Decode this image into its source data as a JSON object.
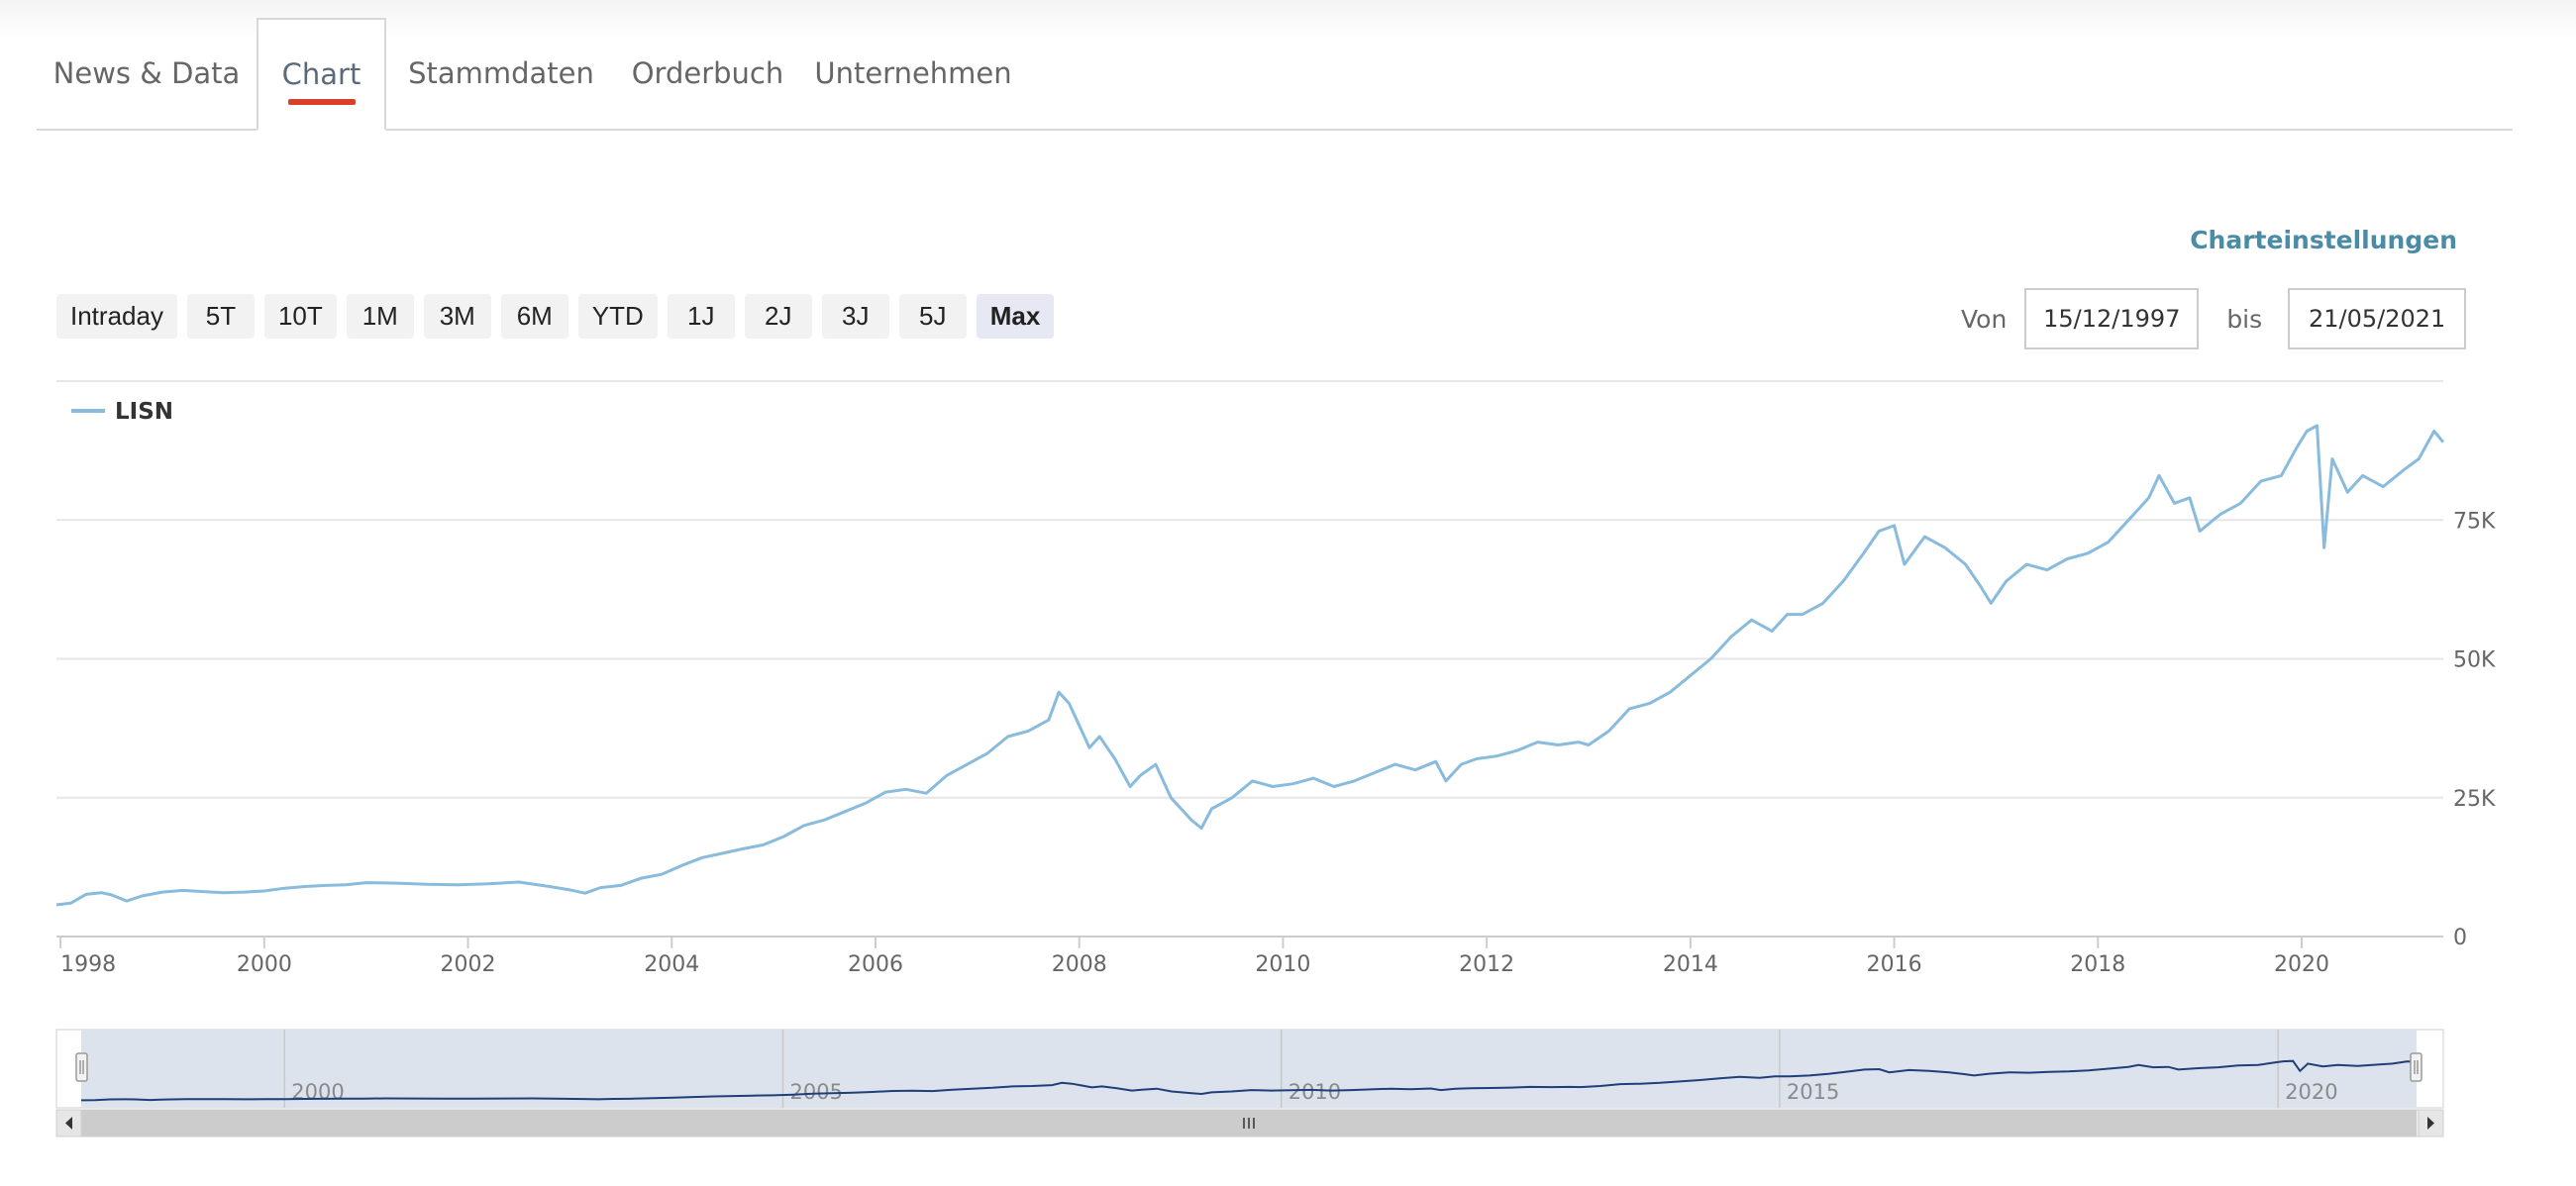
{
  "tabs": [
    {
      "label": "News & Data",
      "active": false
    },
    {
      "label": "Chart",
      "active": true
    },
    {
      "label": "Stammdaten",
      "active": false
    },
    {
      "label": "Orderbuch",
      "active": false
    },
    {
      "label": "Unternehmen",
      "active": false
    }
  ],
  "settings_label": "Charteinstellungen",
  "ranges": [
    "Intraday",
    "5T",
    "10T",
    "1M",
    "3M",
    "6M",
    "YTD",
    "1J",
    "2J",
    "3J",
    "5J",
    "Max"
  ],
  "selected_range": "Max",
  "date_range": {
    "from_label": "Von",
    "from_value": "15/12/1997",
    "to_label": "bis",
    "to_value": "21/05/2021"
  },
  "colors": {
    "series": "#89bbdc",
    "navigator_series": "#1f3f7a",
    "navigator_mask": "#dde3ec",
    "accent": "#d9402b",
    "link": "#4a8ba5"
  },
  "chart_data": {
    "type": "line",
    "title": "",
    "xlabel": "",
    "ylabel": "",
    "legend": {
      "position": "top-left",
      "entries": [
        "LISN"
      ]
    },
    "grid": true,
    "xlim": [
      1997.96,
      2021.39
    ],
    "ylim": [
      0,
      100000
    ],
    "x_ticks": [
      1998,
      2000,
      2002,
      2004,
      2006,
      2008,
      2010,
      2012,
      2014,
      2016,
      2018,
      2020
    ],
    "x_tick_labels": [
      "1998",
      "2000",
      "2002",
      "2004",
      "2006",
      "2008",
      "2010",
      "2012",
      "2014",
      "2016",
      "2018",
      "2020"
    ],
    "y_ticks": [
      0,
      25000,
      50000,
      75000
    ],
    "y_tick_labels": [
      "0",
      "25K",
      "50K",
      "75K"
    ],
    "series": [
      {
        "name": "LISN",
        "x": [
          1997.96,
          1998.1,
          1998.25,
          1998.4,
          1998.5,
          1998.65,
          1998.8,
          1999.0,
          1999.2,
          1999.4,
          1999.6,
          1999.8,
          2000.0,
          2000.2,
          2000.4,
          2000.6,
          2000.8,
          2001.0,
          2001.3,
          2001.6,
          2001.9,
          2002.2,
          2002.5,
          2002.8,
          2003.0,
          2003.15,
          2003.3,
          2003.5,
          2003.7,
          2003.9,
          2004.1,
          2004.3,
          2004.5,
          2004.7,
          2004.9,
          2005.1,
          2005.3,
          2005.5,
          2005.7,
          2005.9,
          2006.1,
          2006.3,
          2006.5,
          2006.7,
          2006.9,
          2007.1,
          2007.3,
          2007.5,
          2007.7,
          2007.8,
          2007.9,
          2008.0,
          2008.1,
          2008.2,
          2008.35,
          2008.5,
          2008.6,
          2008.75,
          2008.9,
          2009.0,
          2009.1,
          2009.2,
          2009.3,
          2009.5,
          2009.7,
          2009.9,
          2010.1,
          2010.3,
          2010.5,
          2010.7,
          2010.9,
          2011.1,
          2011.3,
          2011.5,
          2011.6,
          2011.75,
          2011.9,
          2012.1,
          2012.3,
          2012.5,
          2012.7,
          2012.9,
          2013.0,
          2013.2,
          2013.4,
          2013.6,
          2013.8,
          2014.0,
          2014.2,
          2014.4,
          2014.6,
          2014.8,
          2014.95,
          2015.1,
          2015.3,
          2015.5,
          2015.7,
          2015.85,
          2016.0,
          2016.1,
          2016.3,
          2016.5,
          2016.7,
          2016.85,
          2016.95,
          2017.1,
          2017.3,
          2017.5,
          2017.7,
          2017.9,
          2018.1,
          2018.3,
          2018.5,
          2018.6,
          2018.75,
          2018.9,
          2019.0,
          2019.2,
          2019.4,
          2019.6,
          2019.8,
          2019.95,
          2020.05,
          2020.15,
          2020.22,
          2020.3,
          2020.45,
          2020.6,
          2020.8,
          2021.0,
          2021.15,
          2021.3,
          2021.39
        ],
        "values": [
          5700,
          6000,
          7600,
          7900,
          7500,
          6400,
          7300,
          8000,
          8300,
          8100,
          7900,
          8000,
          8200,
          8700,
          9000,
          9200,
          9300,
          9700,
          9600,
          9400,
          9300,
          9500,
          9800,
          9000,
          8400,
          7800,
          8800,
          9200,
          10500,
          11200,
          12800,
          14200,
          15000,
          15800,
          16500,
          18000,
          20000,
          21000,
          22500,
          24000,
          26000,
          26500,
          25800,
          29000,
          31000,
          33000,
          36000,
          37000,
          39000,
          44000,
          42000,
          38000,
          34000,
          36000,
          32000,
          27000,
          29000,
          31000,
          25000,
          23000,
          21000,
          19500,
          23000,
          25000,
          28000,
          27000,
          27500,
          28500,
          27000,
          28000,
          29500,
          31000,
          30000,
          31500,
          28000,
          31000,
          32000,
          32500,
          33500,
          35000,
          34500,
          35000,
          34500,
          37000,
          41000,
          42000,
          44000,
          47000,
          50000,
          54000,
          57000,
          55000,
          58000,
          58000,
          60000,
          64000,
          69000,
          73000,
          74000,
          67000,
          72000,
          70000,
          67000,
          63000,
          60000,
          64000,
          67000,
          66000,
          68000,
          69000,
          71000,
          75000,
          79000,
          83000,
          78000,
          79000,
          73000,
          76000,
          78000,
          82000,
          83000,
          88000,
          91000,
          92000,
          70000,
          86000,
          80000,
          83000,
          81000,
          84000,
          86000,
          91000,
          89000
        ]
      }
    ]
  },
  "navigator": {
    "x_tick_labels": [
      "2000",
      "2005",
      "2010",
      "2015",
      "2020"
    ],
    "x_ticks": [
      2000,
      2005,
      2010,
      2015,
      2020
    ],
    "scroll_handle_icon": "grip-lines-icon",
    "left_arrow_icon": "arrow-left-icon",
    "right_arrow_icon": "arrow-right-icon"
  }
}
